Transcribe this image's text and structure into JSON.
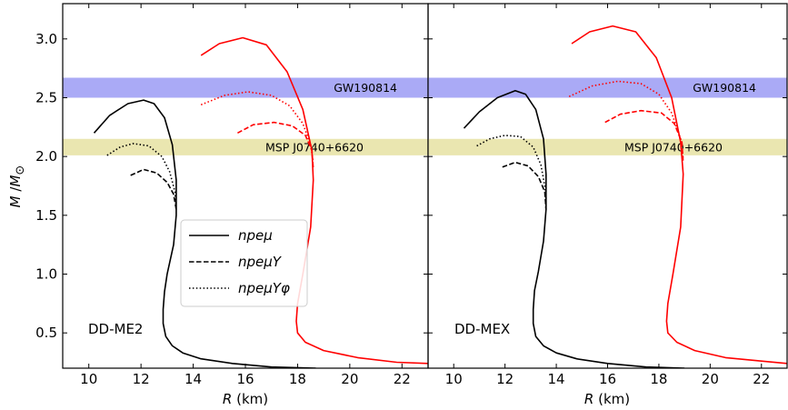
{
  "chart_data": {
    "type": "line",
    "ylabel": "M /M⊙",
    "ylim": [
      0.2,
      3.3
    ],
    "yticks": [
      "0.5",
      "1.0",
      "1.5",
      "2.0",
      "2.5",
      "3.0"
    ],
    "legend": {
      "placement": "center-left of left panel",
      "entries": [
        {
          "label": "npeμ",
          "style": "solid"
        },
        {
          "label": "npeμY",
          "style": "dashed"
        },
        {
          "label": "npeμYφ",
          "style": "dotted"
        }
      ]
    },
    "bands": [
      {
        "label": "GW190814",
        "ymin": 2.5,
        "ymax": 2.67,
        "color": "#aaaaf6"
      },
      {
        "label": "MSP J0740+6620",
        "ymin": 2.01,
        "ymax": 2.15,
        "color": "#eae6b0"
      }
    ],
    "panels": [
      {
        "label": "DD-ME2",
        "xlabel": "R (km)",
        "xlim": [
          9,
          23
        ],
        "xticks": [
          "10",
          "12",
          "14",
          "16",
          "18",
          "20",
          "22"
        ],
        "series": [
          {
            "name": "npeμ",
            "color": "#000000",
            "style": "solid",
            "x": [
              10.2,
              10.8,
              11.5,
              12.1,
              12.5,
              12.9,
              13.2,
              13.35,
              13.35,
              13.25,
              13.0,
              12.9,
              12.85,
              12.85,
              12.95,
              13.2,
              13.6,
              14.3,
              15.5,
              17.0,
              18.7
            ],
            "y": [
              2.2,
              2.35,
              2.45,
              2.48,
              2.45,
              2.33,
              2.1,
              1.8,
              1.5,
              1.25,
              1.0,
              0.85,
              0.7,
              0.58,
              0.47,
              0.39,
              0.33,
              0.28,
              0.24,
              0.21,
              0.2
            ]
          },
          {
            "name": "npeμY",
            "color": "#000000",
            "style": "dashed",
            "x": [
              11.6,
              12.1,
              12.6,
              13.0,
              13.25,
              13.35
            ],
            "y": [
              1.84,
              1.89,
              1.86,
              1.78,
              1.68,
              1.55
            ]
          },
          {
            "name": "npeμYφ",
            "color": "#000000",
            "style": "dotted",
            "x": [
              10.7,
              11.2,
              11.7,
              12.3,
              12.8,
              13.1,
              13.3,
              13.35
            ],
            "y": [
              2.01,
              2.08,
              2.11,
              2.09,
              2.0,
              1.87,
              1.7,
              1.55
            ]
          },
          {
            "name": "npeμ",
            "color": "#ff0000",
            "style": "solid",
            "x": [
              14.3,
              15.0,
              15.9,
              16.8,
              17.6,
              18.2,
              18.55,
              18.6,
              18.5,
              18.2,
              18.0,
              17.95,
              18.0,
              18.3,
              19.0,
              20.3,
              21.8,
              23.0
            ],
            "y": [
              2.86,
              2.96,
              3.01,
              2.95,
              2.72,
              2.4,
              2.05,
              1.8,
              1.4,
              1.0,
              0.75,
              0.6,
              0.5,
              0.42,
              0.35,
              0.29,
              0.25,
              0.24
            ]
          },
          {
            "name": "npeμY",
            "color": "#ff0000",
            "style": "dashed",
            "x": [
              15.7,
              16.3,
              17.1,
              17.8,
              18.3,
              18.55,
              18.6
            ],
            "y": [
              2.2,
              2.27,
              2.29,
              2.26,
              2.18,
              2.05,
              1.9
            ]
          },
          {
            "name": "npeμYφ",
            "color": "#ff0000",
            "style": "dotted",
            "x": [
              14.3,
              15.2,
              16.1,
              17.0,
              17.7,
              18.2,
              18.5,
              18.6
            ],
            "y": [
              2.44,
              2.52,
              2.55,
              2.52,
              2.43,
              2.28,
              2.1,
              1.95
            ]
          }
        ]
      },
      {
        "label": "DD-MEX",
        "xlabel": "R (km)",
        "xlim": [
          9,
          23
        ],
        "xticks": [
          "10",
          "12",
          "14",
          "16",
          "18",
          "20",
          "22"
        ],
        "series": [
          {
            "name": "npeμ",
            "color": "#000000",
            "style": "solid",
            "x": [
              10.4,
              11.0,
              11.7,
              12.4,
              12.8,
              13.2,
              13.5,
              13.6,
              13.6,
              13.5,
              13.3,
              13.15,
              13.1,
              13.1,
              13.2,
              13.5,
              14.0,
              14.8,
              16.0,
              17.5,
              19.0
            ],
            "y": [
              2.24,
              2.38,
              2.5,
              2.56,
              2.53,
              2.4,
              2.15,
              1.85,
              1.55,
              1.28,
              1.02,
              0.86,
              0.7,
              0.58,
              0.47,
              0.39,
              0.33,
              0.28,
              0.24,
              0.21,
              0.2
            ]
          },
          {
            "name": "npeμY",
            "color": "#000000",
            "style": "dashed",
            "x": [
              11.9,
              12.4,
              12.9,
              13.3,
              13.55,
              13.6
            ],
            "y": [
              1.91,
              1.95,
              1.92,
              1.83,
              1.7,
              1.55
            ]
          },
          {
            "name": "npeμYφ",
            "color": "#000000",
            "style": "dotted",
            "x": [
              10.9,
              11.4,
              12.0,
              12.6,
              13.1,
              13.4,
              13.55,
              13.6
            ],
            "y": [
              2.09,
              2.15,
              2.18,
              2.17,
              2.08,
              1.93,
              1.75,
              1.55
            ]
          },
          {
            "name": "npeμ",
            "color": "#ff0000",
            "style": "solid",
            "x": [
              14.6,
              15.3,
              16.2,
              17.1,
              17.9,
              18.5,
              18.85,
              18.95,
              18.85,
              18.55,
              18.35,
              18.3,
              18.35,
              18.7,
              19.4,
              20.6,
              22.0,
              23.0
            ],
            "y": [
              2.96,
              3.06,
              3.11,
              3.06,
              2.84,
              2.5,
              2.12,
              1.85,
              1.4,
              1.0,
              0.75,
              0.6,
              0.5,
              0.42,
              0.35,
              0.29,
              0.26,
              0.24
            ]
          },
          {
            "name": "npeμY",
            "color": "#ff0000",
            "style": "dashed",
            "x": [
              15.9,
              16.5,
              17.3,
              18.1,
              18.6,
              18.9,
              18.95
            ],
            "y": [
              2.29,
              2.36,
              2.39,
              2.37,
              2.28,
              2.12,
              1.95
            ]
          },
          {
            "name": "npeμYφ",
            "color": "#ff0000",
            "style": "dotted",
            "x": [
              14.5,
              15.4,
              16.4,
              17.3,
              18.0,
              18.5,
              18.85,
              18.95
            ],
            "y": [
              2.51,
              2.6,
              2.64,
              2.62,
              2.53,
              2.37,
              2.15,
              1.98
            ]
          }
        ]
      }
    ]
  }
}
